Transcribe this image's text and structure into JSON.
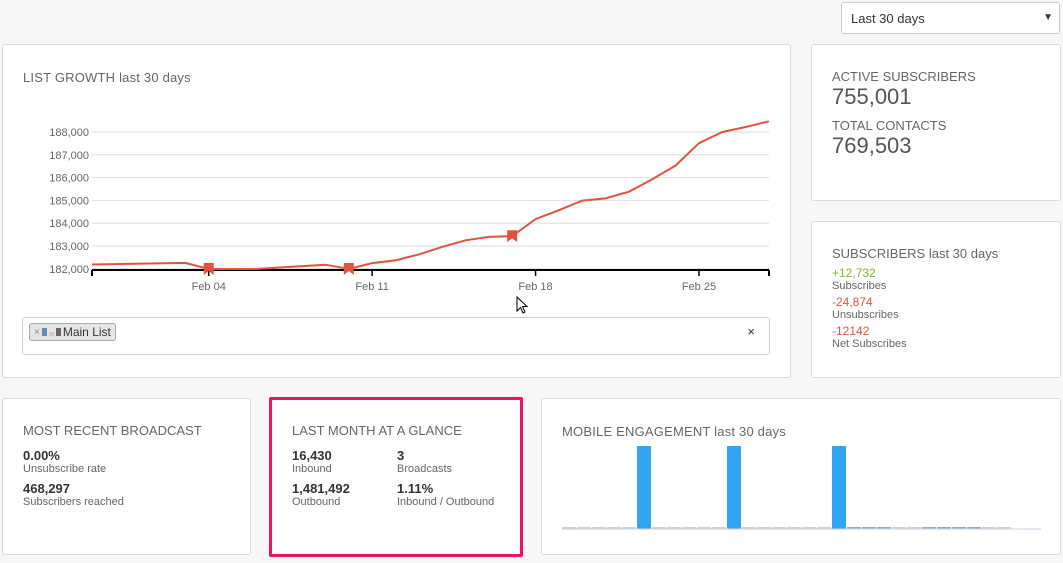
{
  "date_range": {
    "selected": "Last 30 days"
  },
  "list_growth": {
    "title": "LIST GROWTH",
    "subtitle": "last 30 days",
    "filter": {
      "tag_label": "Main List",
      "clear": "×",
      "tag_remove": "×"
    }
  },
  "active": {
    "label": "ACTIVE SUBSCRIBERS",
    "value": "755,001",
    "contacts_label": "TOTAL CONTACTS",
    "contacts_value": "769,503"
  },
  "subscribers": {
    "title": "SUBSCRIBERS",
    "subtitle": "last 30 days",
    "subscribes": "+12,732",
    "subscribes_label": "Subscribes",
    "unsubscribes": "-24,874",
    "unsubscribes_label": "Unsubscribes",
    "net": "-12142",
    "net_label": "Net Subscribes",
    "colors": {
      "positive": "#7cb82f",
      "negative": "#e0533f"
    }
  },
  "broadcast": {
    "title": "MOST RECENT BROADCAST",
    "rate": "0.00%",
    "rate_label": "Unsubscribe rate",
    "reached": "468,297",
    "reached_label": "Subscribers reached"
  },
  "glance": {
    "title": "LAST MONTH AT A GLANCE",
    "inbound": "16,430",
    "inbound_label": "Inbound",
    "broadcasts": "3",
    "broadcasts_label": "Broadcasts",
    "outbound": "1,481,492",
    "outbound_label": "Outbound",
    "ratio": "1.11%",
    "ratio_label": "Inbound / Outbound",
    "highlight_color": "#f0145a"
  },
  "mobile": {
    "title": "MOBILE ENGAGEMENT",
    "subtitle": "last 30 days"
  },
  "chart_data": [
    {
      "type": "line",
      "title": "LIST GROWTH last 30 days",
      "color": "#e0533f",
      "ylim": [
        181850,
        188600
      ],
      "yticks": [
        "182,000",
        "183,000",
        "184,000",
        "185,000",
        "186,000",
        "187,000",
        "188,000"
      ],
      "ytick_values": [
        182000,
        183000,
        184000,
        185000,
        186000,
        187000,
        188000
      ],
      "xlim": [
        "Jan 30",
        "Feb 28"
      ],
      "xticks": [
        {
          "label": "Feb 04",
          "day": 5
        },
        {
          "label": "Feb 11",
          "day": 12
        },
        {
          "label": "Feb 18",
          "day": 19
        },
        {
          "label": "Feb 25",
          "day": 26
        }
      ],
      "grid": true,
      "points": [
        {
          "date": "Jan 30",
          "day": 0,
          "value": 182190
        },
        {
          "date": "Feb 03",
          "day": 4,
          "value": 182260
        },
        {
          "date": "Feb 04",
          "day": 5,
          "value": 181850
        },
        {
          "date": "Feb 06",
          "day": 7,
          "value": 181850
        },
        {
          "date": "Feb 09",
          "day": 10,
          "value": 182180
        },
        {
          "date": "Feb 10",
          "day": 11,
          "value": 181850
        },
        {
          "date": "Feb 11",
          "day": 12,
          "value": 182250
        },
        {
          "date": "Feb 12",
          "day": 13,
          "value": 182370
        },
        {
          "date": "Feb 13",
          "day": 14,
          "value": 182630
        },
        {
          "date": "Feb 14",
          "day": 15,
          "value": 182960
        },
        {
          "date": "Feb 15",
          "day": 16,
          "value": 183250
        },
        {
          "date": "Feb 16",
          "day": 17,
          "value": 183400
        },
        {
          "date": "Feb 17",
          "day": 18,
          "value": 183430
        },
        {
          "date": "Feb 18",
          "day": 19,
          "value": 184180
        },
        {
          "date": "Feb 19",
          "day": 20,
          "value": 184570
        },
        {
          "date": "Feb 20",
          "day": 21,
          "value": 184990
        },
        {
          "date": "Feb 21",
          "day": 22,
          "value": 185090
        },
        {
          "date": "Feb 22",
          "day": 23,
          "value": 185380
        },
        {
          "date": "Feb 23",
          "day": 24,
          "value": 185930
        },
        {
          "date": "Feb 24",
          "day": 25,
          "value": 186530
        },
        {
          "date": "Feb 25",
          "day": 26,
          "value": 187510
        },
        {
          "date": "Feb 26",
          "day": 27,
          "value": 188000
        },
        {
          "date": "Feb 27",
          "day": 28,
          "value": 188220
        },
        {
          "date": "Feb 28",
          "day": 29,
          "value": 188470
        }
      ],
      "markers": [
        {
          "date": "Feb 04",
          "day": 5,
          "value": 181850
        },
        {
          "date": "Feb 10",
          "day": 11,
          "value": 181850
        },
        {
          "date": "Feb 17",
          "day": 18,
          "value": 183430
        }
      ]
    },
    {
      "type": "bar",
      "title": "MOBILE ENGAGEMENT last 30 days",
      "color": "#33a3f4",
      "zero_color": "#c8d4cc",
      "values": [
        0,
        0,
        0,
        0,
        0,
        100,
        0,
        0,
        0,
        0,
        0,
        100,
        0,
        0,
        0,
        0,
        0,
        0,
        100,
        1,
        1,
        1,
        0,
        0,
        1,
        1,
        2,
        1,
        0,
        0
      ]
    }
  ]
}
